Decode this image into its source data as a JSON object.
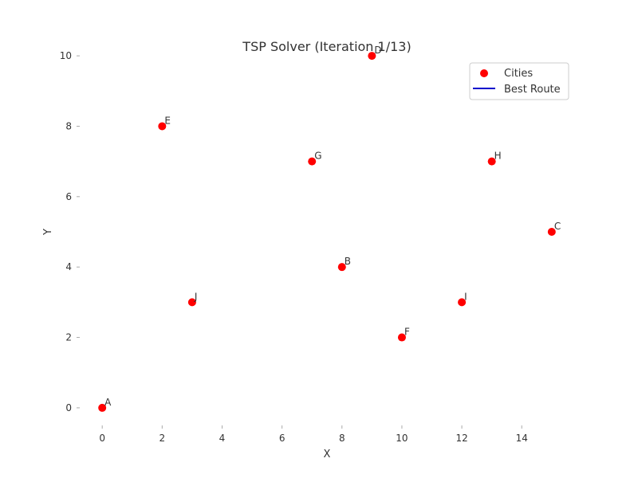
{
  "chart_data": {
    "type": "scatter",
    "title": "TSP Solver (Iteration 1/13)",
    "xlabel": "X",
    "ylabel": "Y",
    "xlim": [
      -0.75,
      15.75
    ],
    "ylim": [
      -0.5,
      10.5
    ],
    "xticks": [
      0,
      2,
      4,
      6,
      8,
      10,
      12,
      14
    ],
    "yticks": [
      0,
      2,
      4,
      6,
      8,
      10
    ],
    "grid": false,
    "legend_position": "top-right",
    "series": [
      {
        "name": "Cities",
        "color": "#ff0000",
        "points": [
          {
            "label": "A",
            "x": 0,
            "y": 0
          },
          {
            "label": "B",
            "x": 8,
            "y": 4
          },
          {
            "label": "C",
            "x": 15,
            "y": 5
          },
          {
            "label": "D",
            "x": 9,
            "y": 10
          },
          {
            "label": "E",
            "x": 2,
            "y": 8
          },
          {
            "label": "F",
            "x": 10,
            "y": 2
          },
          {
            "label": "G",
            "x": 7,
            "y": 7
          },
          {
            "label": "H",
            "x": 13,
            "y": 7
          },
          {
            "label": "I",
            "x": 12,
            "y": 3
          },
          {
            "label": "J",
            "x": 3,
            "y": 3
          }
        ]
      },
      {
        "name": "Best Route",
        "color": "#0000cc",
        "route": []
      }
    ]
  }
}
